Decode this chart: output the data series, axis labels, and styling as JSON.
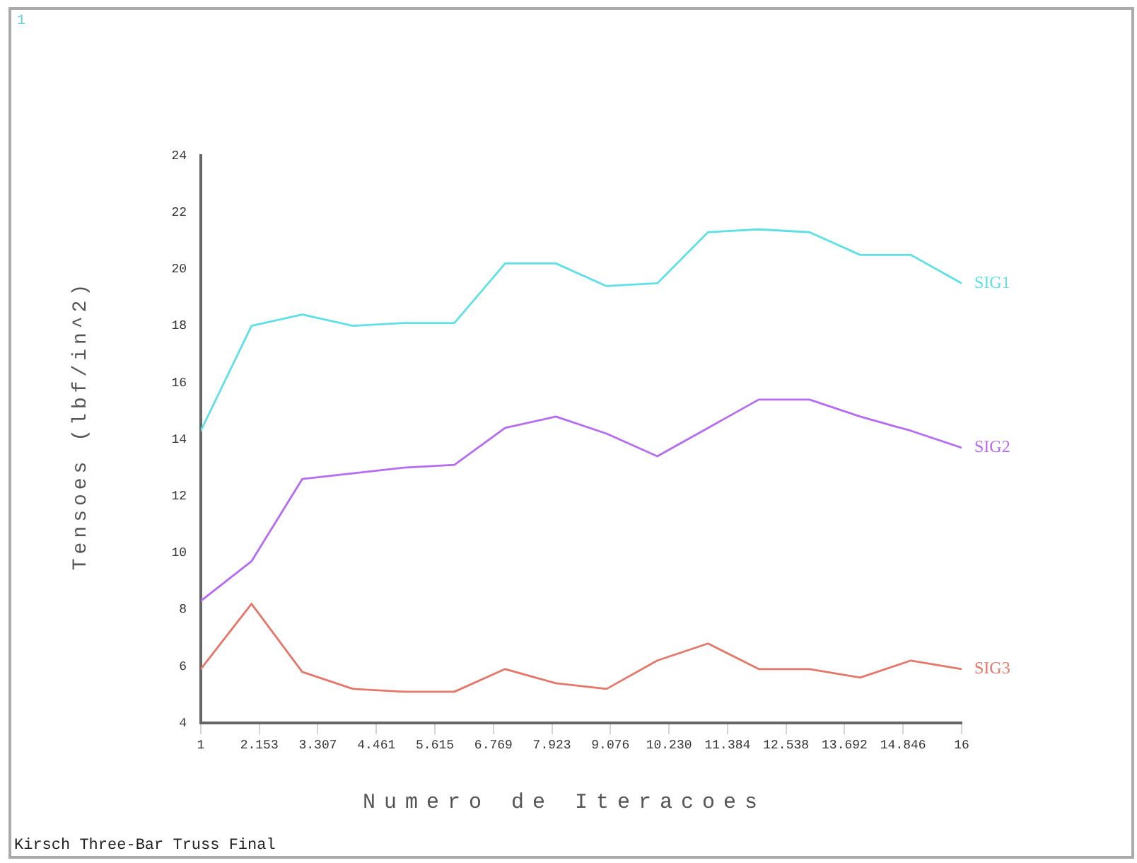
{
  "chart_data": {
    "type": "line",
    "title": "Kirsch Three-Bar Truss Final",
    "xlabel": "Numero de Iteracoes",
    "ylabel": "Tensoes (lbf/in^2)",
    "annotations": [
      "1"
    ],
    "x": [
      1,
      2,
      3,
      4,
      5,
      6,
      7,
      8,
      9,
      10,
      11,
      12,
      13,
      14,
      15,
      16
    ],
    "series": [
      {
        "name": "SIG1",
        "color": "#5fe0e6",
        "values": [
          14.3,
          18.0,
          18.4,
          18.0,
          18.1,
          18.1,
          20.2,
          20.2,
          19.4,
          19.5,
          21.3,
          21.4,
          21.3,
          20.5,
          20.5,
          19.5
        ]
      },
      {
        "name": "SIG2",
        "color": "#b56cf0",
        "values": [
          8.3,
          9.7,
          12.6,
          12.8,
          13.0,
          13.1,
          14.4,
          14.8,
          14.2,
          13.4,
          14.4,
          15.4,
          15.4,
          14.8,
          14.3,
          13.7
        ]
      },
      {
        "name": "SIG3",
        "color": "#e4776a",
        "values": [
          5.9,
          8.2,
          5.8,
          5.2,
          5.1,
          5.1,
          5.9,
          5.4,
          5.2,
          6.2,
          6.8,
          5.9,
          5.9,
          5.6,
          6.2,
          5.9
        ]
      }
    ],
    "xlim": [
      1,
      16
    ],
    "xticks": [
      1,
      2.153,
      3.307,
      4.461,
      5.615,
      6.769,
      7.923,
      9.076,
      {
        "value": 10.23,
        "label": "10.230"
      },
      11.384,
      12.538,
      13.692,
      14.846,
      16
    ],
    "ylim": [
      4,
      24
    ],
    "yticks": [
      4,
      6,
      8,
      10,
      12,
      14,
      16,
      18,
      20,
      22,
      24
    ],
    "grid": false,
    "legend": false,
    "marker": "none",
    "line_style": "solid"
  }
}
